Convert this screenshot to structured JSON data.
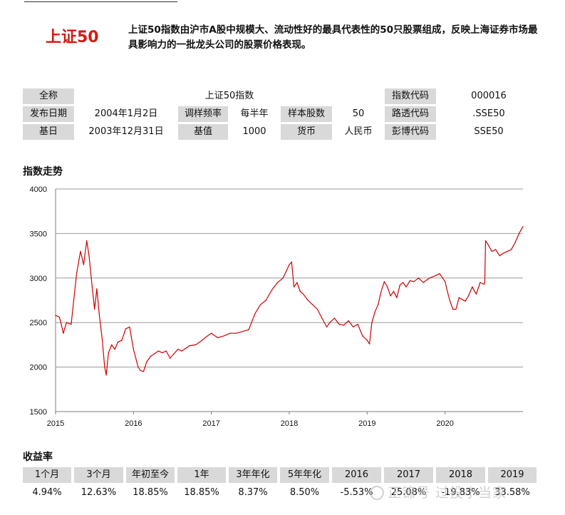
{
  "header": {
    "title": "上证50",
    "description": "上证50指数由沪市A股中规模大、流动性好的最具代表性的50只股票组成，反映上海证券市场最具影响力的一批龙头公司的股票价格表现。"
  },
  "info": {
    "full_name_label": "全称",
    "full_name": "上证50指数",
    "index_code_label": "指数代码",
    "index_code": "000016",
    "release_date_label": "发布日期",
    "release_date": "2004年1月2日",
    "rebalance_label": "调样频率",
    "rebalance": "每半年",
    "sample_count_label": "样本股数",
    "sample_count": "50",
    "reuters_label": "路透代码",
    "reuters": ".SSE50",
    "base_date_label": "基日",
    "base_date": "2003年12月31日",
    "base_value_label": "基值",
    "base_value": "1000",
    "currency_label": "货币",
    "currency": "人民币",
    "bloomberg_label": "彭博代码",
    "bloomberg": "SSE50"
  },
  "chart_section_title": "指数走势",
  "chart_data": {
    "type": "line",
    "title": "指数走势",
    "xlabel": "",
    "ylabel": "",
    "x_ticks": [
      "2015",
      "2016",
      "2017",
      "2018",
      "2019",
      "2020"
    ],
    "y_ticks": [
      "1500",
      "2000",
      "2500",
      "3000",
      "3500",
      "4000"
    ],
    "xlim": [
      2015.0,
      2021.0
    ],
    "ylim": [
      1500,
      4000
    ],
    "color": "#cc0000",
    "series": [
      {
        "name": "上证50",
        "x": [
          2015.0,
          2015.05,
          2015.1,
          2015.14,
          2015.2,
          2015.27,
          2015.32,
          2015.36,
          2015.4,
          2015.43,
          2015.47,
          2015.5,
          2015.53,
          2015.56,
          2015.6,
          2015.63,
          2015.65,
          2015.68,
          2015.72,
          2015.76,
          2015.8,
          2015.85,
          2015.9,
          2015.95,
          2016.0,
          2016.03,
          2016.06,
          2016.09,
          2016.13,
          2016.17,
          2016.22,
          2016.27,
          2016.32,
          2016.37,
          2016.42,
          2016.47,
          2016.52,
          2016.57,
          2016.62,
          2016.67,
          2016.72,
          2016.8,
          2016.88,
          2016.95,
          2017.0,
          2017.08,
          2017.16,
          2017.24,
          2017.32,
          2017.4,
          2017.48,
          2017.56,
          2017.63,
          2017.7,
          2017.78,
          2017.85,
          2017.92,
          2018.0,
          2018.03,
          2018.06,
          2018.1,
          2018.14,
          2018.18,
          2018.24,
          2018.3,
          2018.36,
          2018.42,
          2018.48,
          2018.52,
          2018.58,
          2018.64,
          2018.7,
          2018.76,
          2018.82,
          2018.88,
          2018.94,
          2019.0,
          2019.03,
          2019.06,
          2019.1,
          2019.14,
          2019.18,
          2019.22,
          2019.26,
          2019.3,
          2019.34,
          2019.38,
          2019.42,
          2019.46,
          2019.5,
          2019.55,
          2019.6,
          2019.66,
          2019.72,
          2019.8,
          2019.86,
          2019.93,
          2020.0,
          2020.03,
          2020.06,
          2020.1,
          2020.14,
          2020.18,
          2020.22,
          2020.26,
          2020.3,
          2020.35,
          2020.4,
          2020.45,
          2020.5,
          2020.51,
          2020.52,
          2020.55,
          2020.6,
          2020.65,
          2020.7,
          2020.75,
          2020.8,
          2020.85,
          2020.9,
          2020.95,
          2021.0
        ],
        "values": [
          2580,
          2560,
          2380,
          2500,
          2480,
          3050,
          3300,
          3150,
          3420,
          3250,
          2900,
          2650,
          2880,
          2600,
          2300,
          2000,
          1910,
          2160,
          2250,
          2200,
          2280,
          2300,
          2430,
          2450,
          2200,
          2100,
          2000,
          1960,
          1950,
          2060,
          2120,
          2150,
          2180,
          2160,
          2180,
          2100,
          2150,
          2200,
          2180,
          2210,
          2240,
          2250,
          2300,
          2350,
          2380,
          2330,
          2350,
          2380,
          2380,
          2400,
          2420,
          2600,
          2700,
          2750,
          2870,
          2950,
          3000,
          3150,
          3180,
          2900,
          2950,
          2850,
          2820,
          2750,
          2700,
          2650,
          2550,
          2450,
          2500,
          2550,
          2480,
          2470,
          2520,
          2450,
          2480,
          2350,
          2300,
          2260,
          2500,
          2620,
          2700,
          2850,
          2960,
          2900,
          2800,
          2850,
          2780,
          2920,
          2950,
          2900,
          2970,
          2960,
          3000,
          2950,
          3000,
          3020,
          3050,
          2960,
          2850,
          2750,
          2650,
          2650,
          2780,
          2760,
          2740,
          2800,
          2900,
          2820,
          2950,
          2930,
          2950,
          3420,
          3380,
          3300,
          3320,
          3250,
          3280,
          3300,
          3320,
          3400,
          3500,
          3580
        ]
      }
    ]
  },
  "returns_section_title": "收益率",
  "returns": {
    "headers": [
      "1个月",
      "3个月",
      "年初至今",
      "1年",
      "3年年化",
      "5年年化",
      "2016",
      "2017",
      "2018",
      "2019"
    ],
    "values": [
      "4.94%",
      "12.63%",
      "18.85%",
      "18.85%",
      "8.37%",
      "8.50%",
      "-5.53%",
      "25.08%",
      "-19.83%",
      "33.58%"
    ]
  },
  "watermark": "正锦号 过投小当家"
}
